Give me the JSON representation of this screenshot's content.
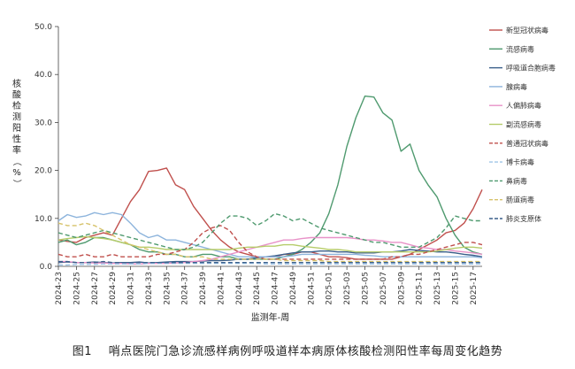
{
  "caption": {
    "figure_number": "图1",
    "text": "哨点医院门急诊流感样病例呼吸道样本病原体核酸检测阳性率每周变化趋势"
  },
  "chart_data": {
    "type": "line",
    "xlabel": "监测年-周",
    "ylabel": "核酸检测阳性率（%）",
    "ylim": [
      0,
      50
    ],
    "yticks": [
      "0.0",
      "10.0",
      "20.0",
      "30.0",
      "40.0",
      "50.0"
    ],
    "xticks": [
      "2024-23",
      "2024-25",
      "2024-27",
      "2024-29",
      "2024-31",
      "2024-33",
      "2024-35",
      "2024-37",
      "2024-39",
      "2024-41",
      "2024-43",
      "2024-45",
      "2024-47",
      "2024-49",
      "2024-51",
      "2025-01",
      "2025-03",
      "2025-05",
      "2025-07",
      "2025-09",
      "2025-11",
      "2025-13",
      "2025-15",
      "2025-17"
    ],
    "grid": false,
    "legend_position": "right",
    "n_points": 48,
    "series": [
      {
        "name": "新型冠状病毒",
        "color": "#c0504d",
        "dash": "solid",
        "values": [
          5.5,
          5.2,
          5.0,
          6.0,
          6.5,
          7.0,
          6.5,
          10.0,
          13.5,
          16.0,
          19.8,
          20.0,
          20.5,
          17.0,
          16.0,
          12.5,
          10.0,
          7.5,
          5.5,
          4.0,
          3.0,
          2.5,
          2.0,
          2.0,
          2.0,
          2.5,
          2.5,
          3.0,
          3.0,
          2.5,
          2.0,
          2.0,
          1.8,
          1.5,
          1.5,
          1.5,
          1.5,
          1.5,
          2.0,
          2.5,
          3.5,
          4.5,
          5.5,
          7.0,
          7.5,
          9.0,
          12.0,
          16.0
        ]
      },
      {
        "name": "流感病毒",
        "color": "#4f9a6f",
        "dash": "solid",
        "values": [
          5.0,
          5.5,
          4.5,
          5.0,
          6.0,
          6.0,
          5.5,
          5.0,
          4.5,
          3.5,
          3.0,
          3.0,
          2.5,
          2.5,
          2.0,
          2.0,
          2.5,
          2.5,
          2.0,
          2.0,
          1.5,
          1.5,
          1.5,
          1.5,
          1.5,
          2.0,
          2.5,
          3.5,
          5.0,
          7.0,
          11.0,
          17.0,
          25.0,
          31.0,
          35.5,
          35.3,
          32.0,
          30.5,
          24.0,
          25.5,
          20.0,
          17.0,
          14.5,
          10.0,
          6.5,
          4.0,
          3.0,
          2.5
        ]
      },
      {
        "name": "呼吸道合胞病毒",
        "color": "#3a5f8a",
        "dash": "solid",
        "values": [
          0.8,
          0.9,
          0.8,
          0.8,
          0.9,
          0.8,
          0.7,
          0.8,
          0.8,
          0.9,
          0.7,
          0.8,
          0.9,
          1.0,
          1.0,
          1.0,
          1.1,
          1.2,
          1.2,
          1.3,
          1.5,
          1.5,
          1.8,
          2.0,
          2.2,
          2.5,
          2.8,
          3.0,
          3.0,
          3.2,
          3.2,
          3.0,
          3.0,
          2.8,
          2.8,
          2.8,
          3.0,
          3.0,
          3.2,
          3.5,
          3.3,
          3.2,
          3.0,
          3.0,
          2.8,
          2.5,
          2.3,
          2.0
        ]
      },
      {
        "name": "腺病毒",
        "color": "#8db4dc",
        "dash": "solid",
        "values": [
          9.5,
          10.8,
          10.2,
          10.5,
          11.2,
          10.8,
          11.2,
          10.8,
          9.0,
          7.0,
          6.0,
          6.5,
          5.5,
          5.5,
          5.0,
          4.5,
          4.0,
          3.5,
          3.0,
          2.5,
          2.0,
          2.0,
          2.0,
          2.0,
          2.0,
          2.0,
          2.2,
          2.5,
          2.5,
          2.5,
          2.5,
          2.5,
          2.5,
          2.5,
          2.3,
          2.2,
          2.0,
          2.0,
          2.0,
          2.0,
          2.0,
          2.0,
          2.0,
          2.0,
          2.0,
          2.0,
          2.0,
          1.8
        ]
      },
      {
        "name": "人偏肺病毒",
        "color": "#e892c8",
        "dash": "solid",
        "values": [
          1.0,
          1.0,
          0.8,
          0.8,
          0.7,
          0.7,
          0.6,
          0.6,
          0.5,
          0.5,
          0.6,
          0.6,
          0.6,
          0.7,
          0.8,
          1.0,
          1.2,
          1.5,
          2.0,
          2.5,
          3.0,
          3.5,
          4.0,
          4.5,
          5.0,
          5.5,
          5.5,
          5.8,
          6.0,
          6.0,
          6.0,
          6.0,
          6.0,
          5.8,
          5.5,
          5.5,
          5.3,
          5.0,
          5.0,
          4.5,
          4.0,
          3.8,
          3.5,
          3.5,
          3.2,
          3.0,
          2.8,
          2.5
        ]
      },
      {
        "name": "副流感病毒",
        "color": "#b6cc6a",
        "dash": "solid",
        "values": [
          5.5,
          5.8,
          6.0,
          6.2,
          6.0,
          5.8,
          5.5,
          5.0,
          4.5,
          4.0,
          4.0,
          3.8,
          3.5,
          3.5,
          3.5,
          3.5,
          3.5,
          3.5,
          3.5,
          3.5,
          3.8,
          4.0,
          4.0,
          4.2,
          4.2,
          4.5,
          4.5,
          4.2,
          4.0,
          3.8,
          3.5,
          3.5,
          3.3,
          3.0,
          3.0,
          3.0,
          3.0,
          3.0,
          3.0,
          3.0,
          3.0,
          3.0,
          3.2,
          3.5,
          3.8,
          4.0,
          4.0,
          3.8
        ]
      },
      {
        "name": "普通冠状病毒",
        "color": "#c0504d",
        "dash": "dashed",
        "values": [
          2.5,
          2.0,
          2.0,
          2.5,
          2.0,
          2.0,
          2.5,
          2.0,
          2.0,
          2.0,
          2.0,
          2.5,
          2.5,
          3.0,
          3.5,
          5.0,
          7.0,
          8.0,
          8.5,
          7.5,
          5.0,
          3.0,
          2.0,
          1.5,
          1.5,
          1.5,
          1.5,
          1.5,
          1.5,
          1.5,
          1.5,
          1.5,
          1.5,
          1.5,
          1.5,
          1.5,
          1.5,
          2.0,
          2.0,
          2.5,
          2.5,
          3.0,
          3.5,
          4.0,
          4.5,
          5.0,
          5.0,
          4.5
        ]
      },
      {
        "name": "博卡病毒",
        "color": "#9fc5e8",
        "dash": "dashed",
        "values": [
          0.3,
          0.3,
          0.4,
          0.4,
          0.4,
          0.5,
          0.5,
          0.5,
          0.5,
          0.5,
          0.6,
          0.6,
          0.6,
          0.6,
          0.6,
          0.6,
          0.6,
          0.6,
          0.6,
          0.6,
          0.6,
          0.6,
          0.6,
          0.5,
          0.5,
          0.5,
          0.5,
          0.5,
          0.5,
          0.5,
          0.5,
          0.5,
          0.5,
          0.5,
          0.5,
          0.5,
          0.5,
          0.5,
          0.5,
          0.5,
          0.5,
          0.5,
          0.5,
          0.5,
          0.5,
          0.5,
          0.5,
          0.5
        ]
      },
      {
        "name": "鼻病毒",
        "color": "#4f9a6f",
        "dash": "dashed",
        "values": [
          7.0,
          6.5,
          6.0,
          6.5,
          7.0,
          7.5,
          7.0,
          6.5,
          6.0,
          5.5,
          5.0,
          4.5,
          4.0,
          3.5,
          3.5,
          4.0,
          5.0,
          7.0,
          9.0,
          10.5,
          10.5,
          10.0,
          8.5,
          9.5,
          11.0,
          10.5,
          9.5,
          10.0,
          9.0,
          8.0,
          7.5,
          7.0,
          6.5,
          6.0,
          5.5,
          5.0,
          5.0,
          4.5,
          4.0,
          4.0,
          4.0,
          5.0,
          6.0,
          8.0,
          10.5,
          10.0,
          9.5,
          9.5
        ]
      },
      {
        "name": "肠道病毒",
        "color": "#d6c26a",
        "dash": "dashed",
        "values": [
          9.0,
          8.5,
          8.5,
          9.0,
          8.5,
          7.5,
          6.5,
          5.5,
          4.5,
          4.0,
          3.5,
          3.0,
          2.5,
          2.5,
          2.0,
          2.0,
          2.0,
          1.5,
          1.5,
          1.5,
          1.5,
          1.5,
          1.5,
          1.5,
          1.5,
          1.2,
          1.2,
          1.2,
          1.2,
          1.2,
          1.0,
          1.0,
          1.0,
          1.0,
          1.0,
          1.0,
          1.0,
          1.0,
          1.0,
          1.0,
          1.0,
          1.0,
          1.0,
          1.0,
          1.0,
          1.0,
          1.0,
          1.0
        ]
      },
      {
        "name": "肺炎支原体",
        "color": "#3a5f8a",
        "dash": "dashed",
        "values": [
          1.0,
          1.0,
          0.8,
          0.8,
          0.8,
          1.0,
          0.8,
          0.8,
          0.8,
          0.8,
          0.8,
          0.8,
          0.8,
          0.8,
          0.8,
          0.8,
          0.8,
          0.8,
          0.8,
          0.8,
          0.8,
          0.8,
          0.8,
          0.8,
          0.8,
          0.8,
          0.8,
          0.8,
          0.8,
          0.8,
          0.8,
          0.8,
          0.8,
          0.8,
          0.8,
          0.8,
          0.8,
          0.8,
          0.8,
          0.8,
          0.8,
          0.8,
          0.8,
          0.8,
          0.8,
          0.8,
          0.8,
          0.8
        ]
      }
    ]
  }
}
